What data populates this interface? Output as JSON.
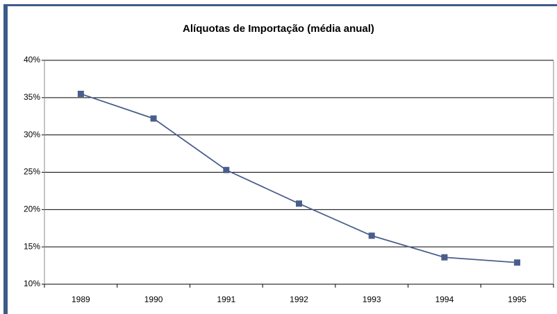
{
  "chart_data": {
    "type": "line",
    "title": "Alíquotas de Importação (média anual)",
    "categories": [
      "1989",
      "1990",
      "1991",
      "1992",
      "1993",
      "1994",
      "1995"
    ],
    "series": [
      {
        "name": "Alíquotas de Importação",
        "color": "#4a5e8c",
        "values": [
          35.5,
          32.2,
          25.3,
          20.8,
          16.5,
          13.6,
          12.9
        ]
      }
    ],
    "ylim": [
      10,
      40
    ],
    "yticks": [
      {
        "value": 10,
        "label": "10%"
      },
      {
        "value": 15,
        "label": "15%"
      },
      {
        "value": 20,
        "label": "20%"
      },
      {
        "value": 25,
        "label": "25%"
      },
      {
        "value": 30,
        "label": "30%"
      },
      {
        "value": 35,
        "label": "35%"
      },
      {
        "value": 40,
        "label": "40%"
      }
    ],
    "grid": true
  }
}
